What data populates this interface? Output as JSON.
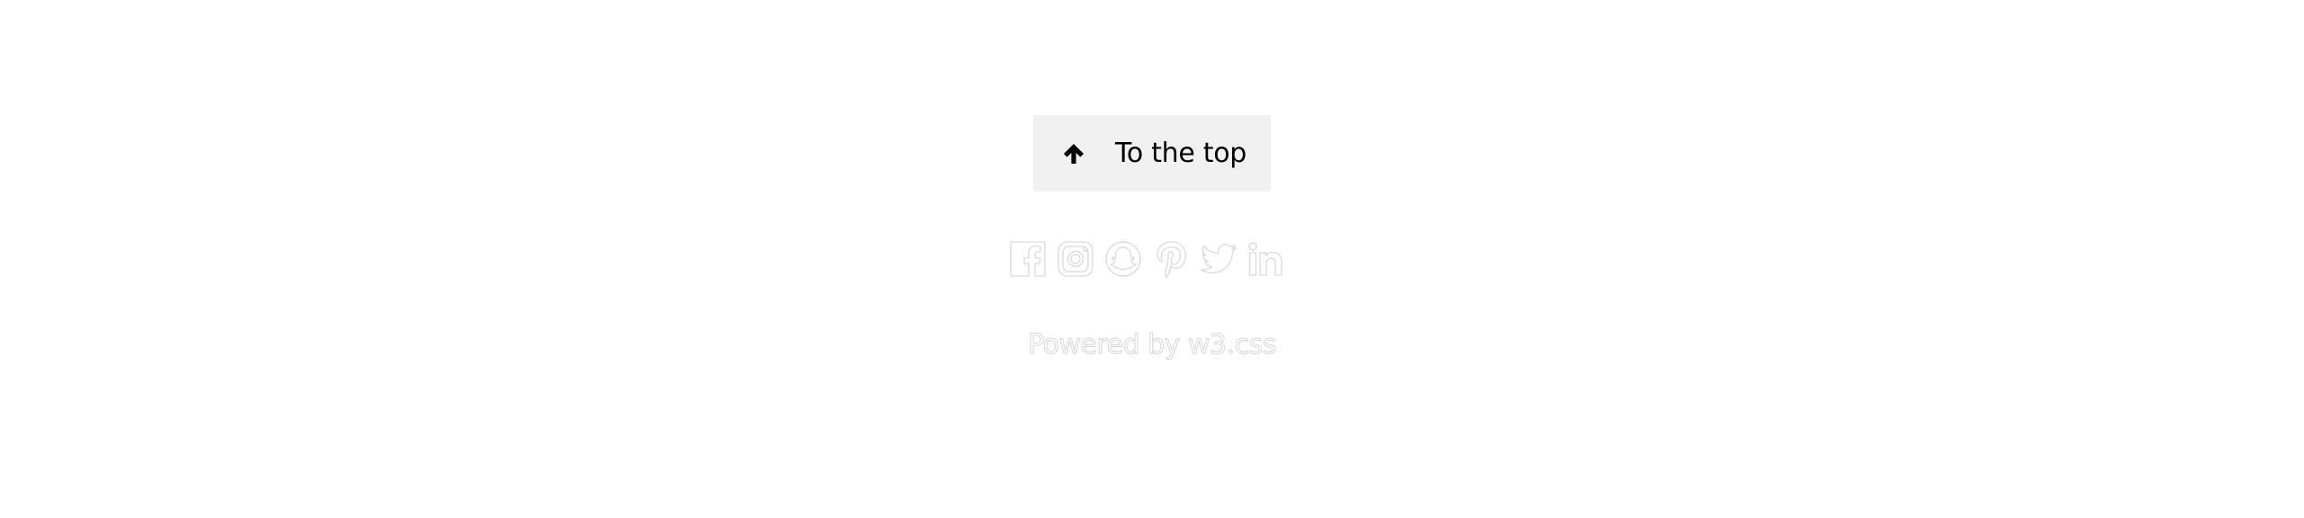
{
  "top_button": {
    "icon": "arrow-up-icon",
    "label": "To the top"
  },
  "social_icons": [
    {
      "name": "facebook-icon"
    },
    {
      "name": "instagram-icon"
    },
    {
      "name": "snapchat-icon"
    },
    {
      "name": "pinterest-icon"
    },
    {
      "name": "twitter-icon"
    },
    {
      "name": "linkedin-icon"
    }
  ],
  "powered": {
    "prefix": "Powered by",
    "link_text": "w3.css"
  },
  "colors": {
    "background": "#ffffff",
    "button_background": "#f1f1f1",
    "button_text": "#000000",
    "outline": "#d9d9d9"
  }
}
